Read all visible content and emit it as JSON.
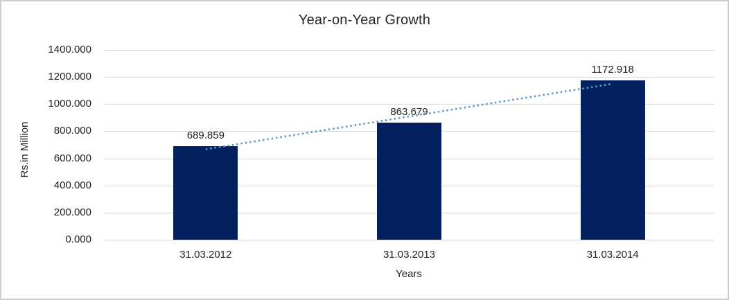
{
  "window": {
    "background": "#ffffff",
    "frame_border_color": "#cdcdcd"
  },
  "chart_data": {
    "type": "bar",
    "title": "Year-on-Year Growth",
    "xlabel": "Years",
    "ylabel": "Rs.in Million",
    "categories": [
      "31.03.2012",
      "31.03.2013",
      "31.03.2014"
    ],
    "values": [
      689.859,
      863.679,
      1172.918
    ],
    "data_labels": [
      "689.859",
      "863.679",
      "1172.918"
    ],
    "ylim": [
      0,
      1400
    ],
    "ytick_step": 200,
    "ytick_labels": [
      "0.000",
      "200.000",
      "400.000",
      "600.000",
      "800.000",
      "1000.000",
      "1200.000",
      "1400.000"
    ],
    "grid": true,
    "legend": "none",
    "bar_color": "#02215E",
    "gridline_color": "#d9d9d9",
    "text_color": "#1f1f1f",
    "trendline": {
      "type": "linear",
      "line_style": "dotted",
      "color": "#5B9BD5"
    }
  }
}
